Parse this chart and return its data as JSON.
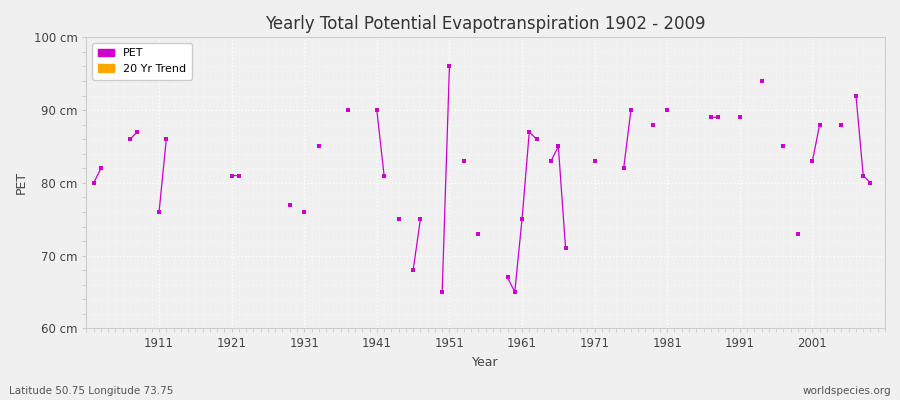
{
  "title": "Yearly Total Potential Evapotranspiration 1902 - 2009",
  "xlabel": "Year",
  "ylabel": "PET",
  "footnote_left": "Latitude 50.75 Longitude 73.75",
  "footnote_right": "worldspecies.org",
  "ylim": [
    60,
    100
  ],
  "yticks": [
    60,
    70,
    80,
    90,
    100
  ],
  "ytick_labels": [
    "60 cm",
    "70 cm",
    "80 cm",
    "90 cm",
    "100 cm"
  ],
  "xlim": [
    1901,
    2011
  ],
  "xticks": [
    1911,
    1921,
    1931,
    1941,
    1951,
    1961,
    1971,
    1981,
    1991,
    2001
  ],
  "line_color": "#cc00cc",
  "trend_color": "#ffa500",
  "bg_color": "#f0f0f0",
  "plot_bg_color": "#f0f0f0",
  "legend_labels": [
    "PET",
    "20 Yr Trend"
  ],
  "years": [
    1902,
    1903,
    1904,
    1905,
    1906,
    1907,
    1908,
    1909,
    1910,
    1911,
    1912,
    1913,
    1914,
    1915,
    1916,
    1917,
    1918,
    1919,
    1920,
    1921,
    1922,
    1923,
    1924,
    1925,
    1926,
    1927,
    1928,
    1929,
    1930,
    1931,
    1932,
    1933,
    1934,
    1935,
    1936,
    1937,
    1938,
    1939,
    1940,
    1941,
    1942,
    1943,
    1944,
    1945,
    1946,
    1947,
    1948,
    1949,
    1950,
    1951,
    1952,
    1953,
    1954,
    1955,
    1956,
    1957,
    1958,
    1959,
    1960,
    1961,
    1962,
    1963,
    1964,
    1965,
    1966,
    1967,
    1968,
    1969,
    1970,
    1971,
    1972,
    1973,
    1974,
    1975,
    1976,
    1977,
    1978,
    1979,
    1980,
    1981,
    1982,
    1983,
    1984,
    1985,
    1986,
    1987,
    1988,
    1989,
    1990,
    1991,
    1992,
    1993,
    1994,
    1995,
    1996,
    1997,
    1998,
    1999,
    2000,
    2001,
    2002,
    2003,
    2004,
    2005,
    2006,
    2007,
    2008,
    2009
  ],
  "values": [
    80,
    82,
    null,
    null,
    null,
    86,
    87,
    null,
    null,
    76,
    86,
    null,
    null,
    null,
    null,
    null,
    null,
    null,
    null,
    81,
    81,
    null,
    null,
    null,
    null,
    null,
    null,
    77,
    null,
    76,
    null,
    85,
    null,
    null,
    null,
    90,
    null,
    null,
    null,
    90,
    81,
    null,
    75,
    null,
    68,
    75,
    null,
    null,
    65,
    96,
    null,
    83,
    null,
    73,
    null,
    null,
    null,
    67,
    65,
    75,
    87,
    86,
    null,
    83,
    85,
    71,
    null,
    null,
    null,
    83,
    null,
    null,
    null,
    82,
    90,
    null,
    null,
    88,
    null,
    90,
    null,
    null,
    null,
    null,
    null,
    89,
    89,
    null,
    null,
    89,
    null,
    null,
    94,
    null,
    null,
    85,
    null,
    73,
    null,
    83,
    88,
    null,
    null,
    88,
    null,
    92,
    81,
    80
  ]
}
